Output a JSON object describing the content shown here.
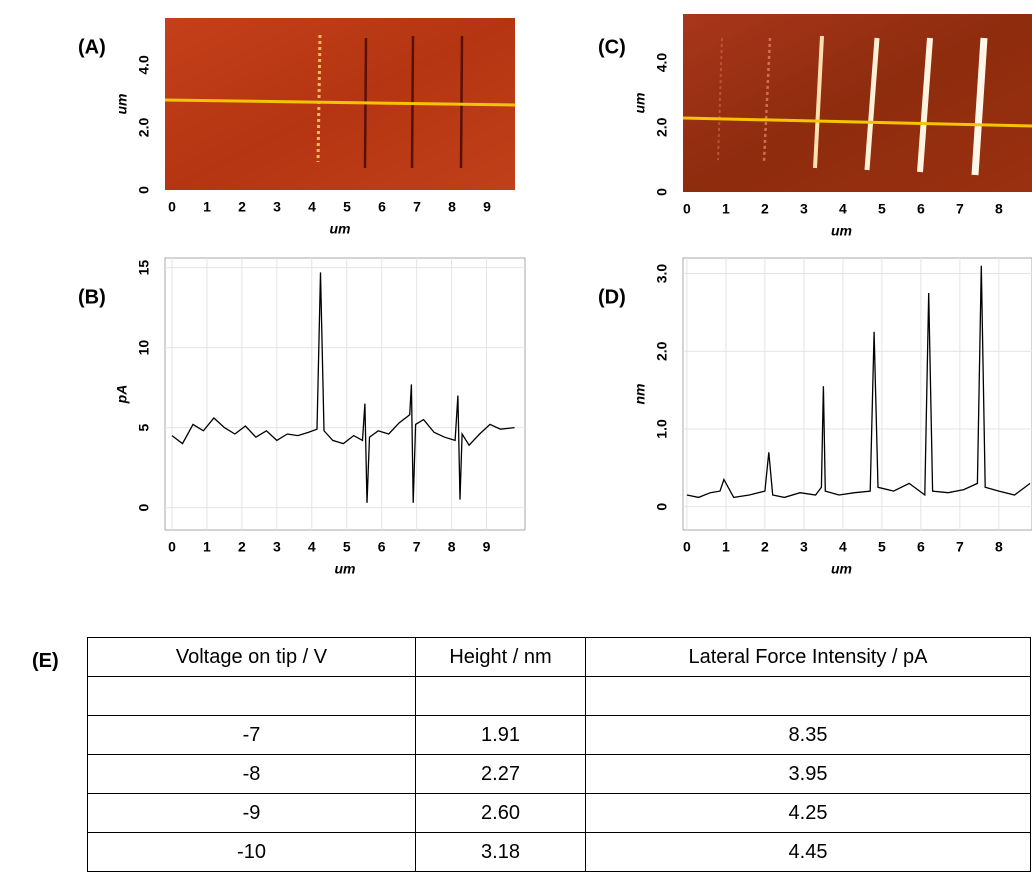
{
  "chart_data": [
    {
      "type": "image",
      "panel_label": "(A)",
      "xlabel": "um",
      "ylabel": "um",
      "xlim": [
        -0.2,
        9.8
      ],
      "ylim": [
        0,
        5.5
      ],
      "xticks": [
        0,
        1,
        2,
        3,
        4,
        5,
        6,
        7,
        8,
        9
      ],
      "yticks": [
        0,
        {
          "value": 2,
          "label": "2.0"
        },
        {
          "value": 4,
          "label": "4.0"
        }
      ]
    },
    {
      "type": "line",
      "panel_label": "(B)",
      "xlabel": "um",
      "ylabel": "pA",
      "xlim": [
        -0.2,
        10.1
      ],
      "ylim": [
        -1.4,
        15.6
      ],
      "xticks": [
        0,
        1,
        2,
        3,
        4,
        5,
        6,
        7,
        8,
        9
      ],
      "yticks": [
        0,
        5,
        10,
        15
      ],
      "grid": true,
      "x": [
        0,
        0.3,
        0.6,
        0.9,
        1.2,
        1.5,
        1.8,
        2.1,
        2.4,
        2.7,
        3.0,
        3.3,
        3.6,
        3.9,
        4.15,
        4.25,
        4.35,
        4.6,
        4.9,
        5.2,
        5.45,
        5.52,
        5.58,
        5.65,
        5.9,
        6.2,
        6.5,
        6.8,
        6.85,
        6.9,
        6.97,
        7.2,
        7.5,
        7.8,
        8.1,
        8.18,
        8.24,
        8.3,
        8.5,
        8.8,
        9.1,
        9.4,
        9.8
      ],
      "series": [
        {
          "color": "#000000",
          "values": [
            4.5,
            4.0,
            5.2,
            4.8,
            5.6,
            5.0,
            4.6,
            5.1,
            4.4,
            4.8,
            4.2,
            4.6,
            4.5,
            4.7,
            4.9,
            14.7,
            4.8,
            4.2,
            4.0,
            4.5,
            4.2,
            6.5,
            0.3,
            4.4,
            4.8,
            4.6,
            5.3,
            5.8,
            7.7,
            0.3,
            5.2,
            5.5,
            4.7,
            4.4,
            4.2,
            7.0,
            0.5,
            4.6,
            3.9,
            4.6,
            5.2,
            4.9,
            5.0
          ]
        }
      ]
    },
    {
      "type": "image",
      "panel_label": "(C)",
      "xlabel": "um",
      "ylabel": "um",
      "xlim": [
        -0.1,
        8.85
      ],
      "ylim": [
        0,
        5.5
      ],
      "xticks": [
        0,
        1,
        2,
        3,
        4,
        5,
        6,
        7,
        8
      ],
      "yticks": [
        0,
        {
          "value": 2,
          "label": "2.0"
        },
        {
          "value": 4,
          "label": "4.0"
        }
      ]
    },
    {
      "type": "line",
      "panel_label": "(D)",
      "xlabel": "um",
      "ylabel": "nm",
      "xlim": [
        -0.1,
        8.85
      ],
      "ylim": [
        -0.3,
        3.2
      ],
      "xticks": [
        0,
        1,
        2,
        3,
        4,
        5,
        6,
        7,
        8
      ],
      "yticks": [
        0,
        {
          "value": 1,
          "label": "1.0"
        },
        {
          "value": 2,
          "label": "2.0"
        },
        {
          "value": 3,
          "label": "3.0"
        }
      ],
      "grid": true,
      "x": [
        0,
        0.3,
        0.6,
        0.85,
        0.95,
        1.2,
        1.6,
        2.0,
        2.1,
        2.2,
        2.5,
        2.9,
        3.3,
        3.45,
        3.5,
        3.55,
        3.9,
        4.3,
        4.7,
        4.8,
        4.9,
        5.3,
        5.7,
        6.1,
        6.2,
        6.3,
        6.7,
        7.1,
        7.45,
        7.55,
        7.65,
        8.0,
        8.4,
        8.8
      ],
      "series": [
        {
          "color": "#000000",
          "values": [
            0.15,
            0.12,
            0.18,
            0.2,
            0.35,
            0.12,
            0.15,
            0.2,
            0.7,
            0.15,
            0.12,
            0.18,
            0.15,
            0.25,
            1.55,
            0.2,
            0.15,
            0.18,
            0.2,
            2.25,
            0.25,
            0.2,
            0.3,
            0.15,
            2.75,
            0.2,
            0.18,
            0.22,
            0.3,
            3.1,
            0.25,
            0.2,
            0.15,
            0.3
          ]
        }
      ]
    }
  ],
  "table": {
    "label": "(E)",
    "header": [
      "Voltage on tip / V",
      "Height / nm",
      "Lateral Force Intensity / pA"
    ],
    "rows": [
      [
        "-7",
        "1.91",
        "8.35"
      ],
      [
        "-8",
        "2.27",
        "3.95"
      ],
      [
        "-9",
        "2.60",
        "4.25"
      ],
      [
        "-10",
        "3.18",
        "4.45"
      ]
    ]
  }
}
